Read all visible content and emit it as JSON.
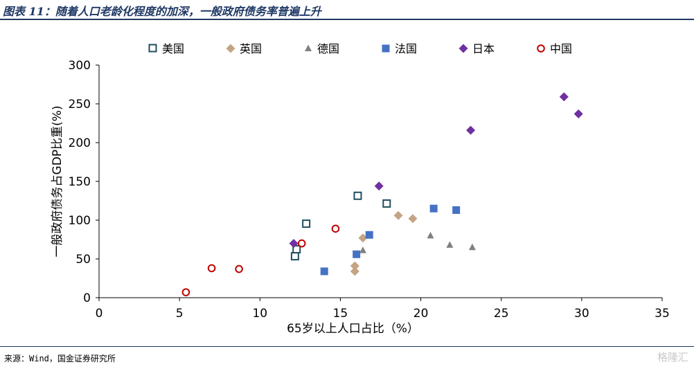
{
  "header": {
    "title": "图表 11：随着人口老龄化程度的加深，一般政府债务率普遍上升"
  },
  "footer": {
    "source": "来源：Wind，国金证券研究所",
    "watermark": "格隆汇"
  },
  "chart_data": {
    "type": "scatter",
    "title": "",
    "xlabel": "65岁以上人口占比（%）",
    "ylabel": "一般政府债务占GDP比重(%)",
    "xlim": [
      0,
      35
    ],
    "ylim": [
      0,
      300
    ],
    "xticks": [
      "0",
      "5",
      "10",
      "15",
      "20",
      "25",
      "30",
      "35"
    ],
    "yticks": [
      "0",
      "50",
      "100",
      "150",
      "200",
      "250",
      "300"
    ],
    "grid": false,
    "legend_position": "top",
    "series": [
      {
        "name": "美国",
        "marker": "square-open",
        "color": "#1f4e5f",
        "points": [
          [
            12.2,
            53
          ],
          [
            12.3,
            62
          ],
          [
            12.9,
            95
          ],
          [
            16.1,
            131
          ],
          [
            17.9,
            121
          ]
        ]
      },
      {
        "name": "英国",
        "marker": "diamond",
        "color": "#c4a484",
        "points": [
          [
            15.9,
            34
          ],
          [
            15.9,
            41
          ],
          [
            16.4,
            77
          ],
          [
            18.6,
            106
          ],
          [
            19.5,
            102
          ]
        ]
      },
      {
        "name": "德国",
        "marker": "triangle",
        "color": "#808080",
        "points": [
          [
            16.4,
            61
          ],
          [
            20.6,
            80
          ],
          [
            21.8,
            68
          ],
          [
            23.2,
            65
          ]
        ]
      },
      {
        "name": "法国",
        "marker": "square",
        "color": "#4472c4",
        "points": [
          [
            14.0,
            34
          ],
          [
            16.0,
            56
          ],
          [
            16.8,
            81
          ],
          [
            20.8,
            115
          ],
          [
            22.2,
            113
          ]
        ]
      },
      {
        "name": "日本",
        "marker": "diamond",
        "color": "#7030a0",
        "points": [
          [
            12.1,
            70
          ],
          [
            17.4,
            144
          ],
          [
            23.1,
            216
          ],
          [
            28.9,
            259
          ],
          [
            29.8,
            237
          ]
        ]
      },
      {
        "name": "中国",
        "marker": "circle-open",
        "color": "#c00000",
        "points": [
          [
            5.4,
            7
          ],
          [
            7.0,
            38
          ],
          [
            8.7,
            37
          ],
          [
            12.6,
            70
          ],
          [
            14.7,
            89
          ]
        ]
      }
    ]
  }
}
